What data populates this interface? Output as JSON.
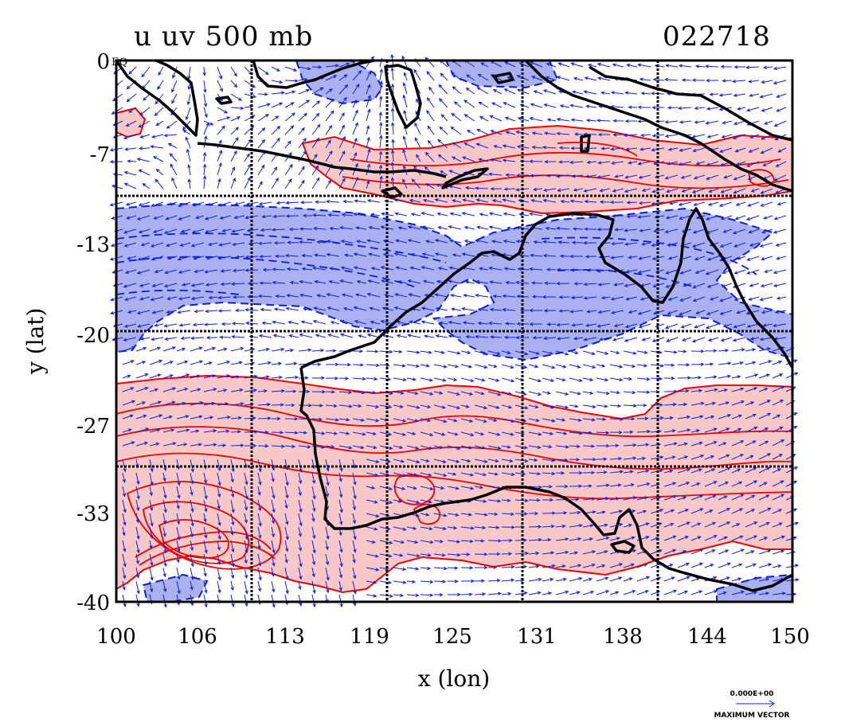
{
  "title_left": "u uv 500 mb",
  "title_right": "022718",
  "x_label": "x (lon)",
  "y_label": "y (lat)",
  "x_ticks": [
    "100",
    "106",
    "113",
    "119",
    "125",
    "131",
    "138",
    "144",
    "150"
  ],
  "y_ticks": [
    "0",
    "-7",
    "-13",
    "-20",
    "-27",
    "-33",
    "-40"
  ],
  "equator_mark": "EQ",
  "vector_legend": {
    "value": "0.000E+00",
    "label": "MAXIMUM VECTOR"
  },
  "colors": {
    "positive_fill": "#f8c8c8",
    "positive_contour": "#ee0000",
    "negative_fill": "#aab0f0",
    "negative_contour": "#0a1ee0",
    "vectors": "#1020e0",
    "coast_grid": "#000000"
  },
  "map_data": {
    "projection": "lat-lon",
    "lon_range": [
      100,
      150
    ],
    "lat_range": [
      -40,
      0
    ],
    "grid_lon": [
      110,
      120,
      130,
      140
    ],
    "grid_lat": [
      -10,
      -20,
      -30
    ],
    "field": "u wind 500 mb",
    "valid_time": "022718"
  }
}
